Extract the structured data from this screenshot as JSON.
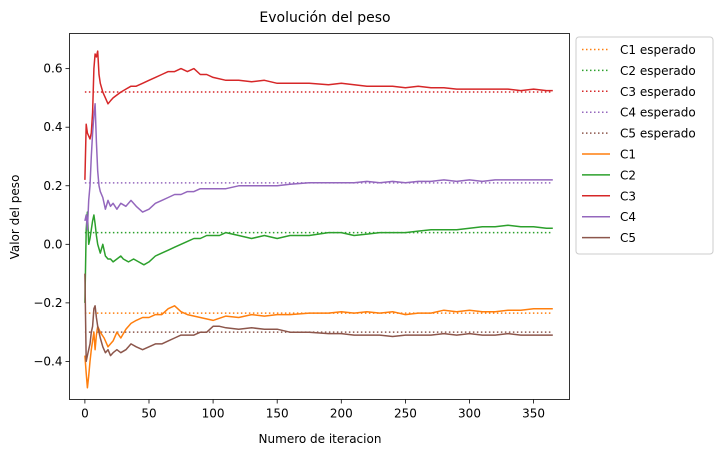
{
  "chart_data": {
    "type": "line",
    "title": "Evolución del peso",
    "xlabel": "Numero de iteracion",
    "ylabel": "Valor del peso",
    "xlim": [
      -12,
      378
    ],
    "ylim": [
      -0.53,
      0.72
    ],
    "xticks": [
      0,
      50,
      100,
      150,
      200,
      250,
      300,
      350
    ],
    "xtick_labels": [
      "0",
      "50",
      "100",
      "150",
      "200",
      "250",
      "300",
      "350"
    ],
    "yticks": [
      -0.4,
      -0.2,
      0.0,
      0.2,
      0.4,
      0.6
    ],
    "ytick_labels": [
      "−0.4",
      "−0.2",
      "0.0",
      "0.2",
      "0.4",
      "0.6"
    ],
    "grid": false,
    "legend_position": "outside-top-right",
    "expected": [
      {
        "name": "C1 esperado",
        "color": "#ff7f0e",
        "x": [
          0,
          365
        ],
        "y": [
          -0.235,
          -0.235
        ]
      },
      {
        "name": "C2 esperado",
        "color": "#2ca02c",
        "x": [
          0,
          365
        ],
        "y": [
          0.04,
          0.04
        ]
      },
      {
        "name": "C3 esperado",
        "color": "#d62728",
        "x": [
          0,
          365
        ],
        "y": [
          0.52,
          0.52
        ]
      },
      {
        "name": "C4 esperado",
        "color": "#9467bd",
        "x": [
          0,
          365
        ],
        "y": [
          0.21,
          0.21
        ]
      },
      {
        "name": "C5 esperado",
        "color": "#8c564b",
        "x": [
          0,
          365
        ],
        "y": [
          -0.3,
          -0.3
        ]
      }
    ],
    "series": [
      {
        "name": "C1",
        "color": "#ff7f0e",
        "x": [
          0,
          1,
          2,
          3,
          4,
          5,
          6,
          7,
          8,
          9,
          10,
          12,
          15,
          18,
          22,
          25,
          28,
          32,
          36,
          40,
          45,
          50,
          55,
          60,
          65,
          70,
          75,
          80,
          90,
          100,
          110,
          120,
          130,
          140,
          150,
          160,
          175,
          190,
          200,
          210,
          220,
          230,
          240,
          250,
          260,
          270,
          280,
          290,
          300,
          310,
          320,
          330,
          340,
          350,
          360,
          365
        ],
        "y": [
          -0.38,
          -0.44,
          -0.49,
          -0.45,
          -0.4,
          -0.36,
          -0.33,
          -0.3,
          -0.36,
          -0.31,
          -0.28,
          -0.3,
          -0.32,
          -0.35,
          -0.33,
          -0.3,
          -0.32,
          -0.29,
          -0.27,
          -0.26,
          -0.25,
          -0.25,
          -0.24,
          -0.24,
          -0.22,
          -0.21,
          -0.23,
          -0.24,
          -0.25,
          -0.26,
          -0.245,
          -0.25,
          -0.24,
          -0.245,
          -0.24,
          -0.24,
          -0.235,
          -0.235,
          -0.23,
          -0.235,
          -0.23,
          -0.235,
          -0.23,
          -0.24,
          -0.235,
          -0.235,
          -0.225,
          -0.23,
          -0.225,
          -0.23,
          -0.23,
          -0.225,
          -0.225,
          -0.22,
          -0.22,
          -0.22
        ]
      },
      {
        "name": "C2",
        "color": "#2ca02c",
        "x": [
          0,
          1,
          2,
          3,
          4,
          5,
          6,
          7,
          8,
          9,
          10,
          12,
          14,
          16,
          18,
          20,
          22,
          25,
          28,
          30,
          34,
          38,
          42,
          46,
          50,
          55,
          60,
          65,
          70,
          75,
          80,
          85,
          90,
          95,
          100,
          105,
          110,
          120,
          130,
          140,
          150,
          160,
          175,
          190,
          200,
          210,
          220,
          230,
          240,
          250,
          260,
          270,
          280,
          290,
          300,
          310,
          320,
          330,
          340,
          350,
          360,
          365
        ],
        "y": [
          -0.2,
          0.05,
          0.11,
          0.0,
          0.02,
          0.05,
          0.08,
          0.1,
          0.07,
          0.03,
          0.0,
          -0.03,
          0.0,
          -0.04,
          -0.05,
          -0.05,
          -0.06,
          -0.05,
          -0.04,
          -0.05,
          -0.06,
          -0.05,
          -0.06,
          -0.07,
          -0.06,
          -0.04,
          -0.03,
          -0.02,
          -0.01,
          0.0,
          0.01,
          0.02,
          0.02,
          0.03,
          0.03,
          0.03,
          0.04,
          0.03,
          0.02,
          0.03,
          0.02,
          0.03,
          0.03,
          0.04,
          0.04,
          0.03,
          0.035,
          0.04,
          0.04,
          0.04,
          0.045,
          0.05,
          0.05,
          0.05,
          0.055,
          0.06,
          0.06,
          0.065,
          0.06,
          0.06,
          0.055,
          0.055
        ]
      },
      {
        "name": "C3",
        "color": "#d62728",
        "x": [
          0,
          1,
          2,
          3,
          4,
          5,
          6,
          7,
          8,
          9,
          10,
          11,
          12,
          14,
          16,
          18,
          20,
          22,
          25,
          28,
          32,
          36,
          40,
          45,
          50,
          55,
          60,
          65,
          70,
          75,
          80,
          85,
          90,
          95,
          100,
          110,
          120,
          130,
          140,
          150,
          160,
          175,
          190,
          200,
          210,
          220,
          230,
          240,
          250,
          260,
          270,
          280,
          290,
          300,
          310,
          320,
          330,
          340,
          350,
          360,
          365
        ],
        "y": [
          0.22,
          0.41,
          0.38,
          0.37,
          0.36,
          0.38,
          0.45,
          0.6,
          0.65,
          0.64,
          0.66,
          0.58,
          0.55,
          0.52,
          0.5,
          0.48,
          0.49,
          0.5,
          0.51,
          0.52,
          0.53,
          0.54,
          0.54,
          0.55,
          0.56,
          0.57,
          0.58,
          0.59,
          0.59,
          0.6,
          0.59,
          0.6,
          0.58,
          0.58,
          0.57,
          0.56,
          0.56,
          0.555,
          0.56,
          0.55,
          0.55,
          0.55,
          0.545,
          0.55,
          0.545,
          0.54,
          0.54,
          0.54,
          0.535,
          0.54,
          0.535,
          0.535,
          0.53,
          0.53,
          0.53,
          0.53,
          0.53,
          0.525,
          0.53,
          0.525,
          0.525
        ]
      },
      {
        "name": "C4",
        "color": "#9467bd",
        "x": [
          0,
          1,
          2,
          3,
          4,
          5,
          6,
          7,
          8,
          9,
          10,
          11,
          12,
          14,
          16,
          18,
          20,
          22,
          25,
          28,
          32,
          36,
          40,
          45,
          50,
          55,
          60,
          65,
          70,
          75,
          80,
          85,
          90,
          95,
          100,
          110,
          120,
          130,
          140,
          150,
          160,
          175,
          190,
          200,
          210,
          220,
          230,
          240,
          250,
          260,
          270,
          280,
          290,
          300,
          310,
          320,
          330,
          340,
          350,
          360,
          365
        ],
        "y": [
          0.08,
          0.1,
          0.05,
          0.15,
          0.2,
          0.3,
          0.38,
          0.44,
          0.48,
          0.35,
          0.25,
          0.2,
          0.18,
          0.16,
          0.12,
          0.15,
          0.13,
          0.14,
          0.12,
          0.14,
          0.13,
          0.15,
          0.13,
          0.11,
          0.12,
          0.14,
          0.15,
          0.16,
          0.17,
          0.17,
          0.18,
          0.18,
          0.19,
          0.19,
          0.19,
          0.19,
          0.2,
          0.2,
          0.2,
          0.2,
          0.205,
          0.21,
          0.21,
          0.21,
          0.21,
          0.215,
          0.21,
          0.215,
          0.21,
          0.215,
          0.215,
          0.22,
          0.215,
          0.22,
          0.215,
          0.22,
          0.22,
          0.22,
          0.22,
          0.22,
          0.22
        ]
      },
      {
        "name": "C5",
        "color": "#8c564b",
        "x": [
          0,
          1,
          2,
          3,
          4,
          5,
          6,
          7,
          8,
          9,
          10,
          11,
          12,
          14,
          16,
          18,
          20,
          22,
          25,
          28,
          32,
          36,
          40,
          45,
          50,
          55,
          60,
          65,
          70,
          75,
          80,
          85,
          90,
          95,
          100,
          105,
          110,
          120,
          130,
          140,
          150,
          160,
          175,
          190,
          200,
          210,
          220,
          230,
          240,
          250,
          260,
          270,
          280,
          290,
          300,
          310,
          320,
          330,
          340,
          350,
          360,
          365
        ],
        "y": [
          -0.1,
          -0.4,
          -0.38,
          -0.36,
          -0.34,
          -0.3,
          -0.28,
          -0.22,
          -0.21,
          -0.25,
          -0.28,
          -0.3,
          -0.32,
          -0.35,
          -0.37,
          -0.36,
          -0.38,
          -0.37,
          -0.36,
          -0.37,
          -0.36,
          -0.34,
          -0.35,
          -0.36,
          -0.35,
          -0.34,
          -0.34,
          -0.33,
          -0.32,
          -0.31,
          -0.31,
          -0.31,
          -0.3,
          -0.3,
          -0.28,
          -0.28,
          -0.285,
          -0.29,
          -0.285,
          -0.29,
          -0.29,
          -0.3,
          -0.3,
          -0.305,
          -0.305,
          -0.31,
          -0.31,
          -0.31,
          -0.315,
          -0.31,
          -0.31,
          -0.31,
          -0.305,
          -0.31,
          -0.305,
          -0.31,
          -0.31,
          -0.305,
          -0.31,
          -0.31,
          -0.31,
          -0.31
        ]
      }
    ]
  }
}
